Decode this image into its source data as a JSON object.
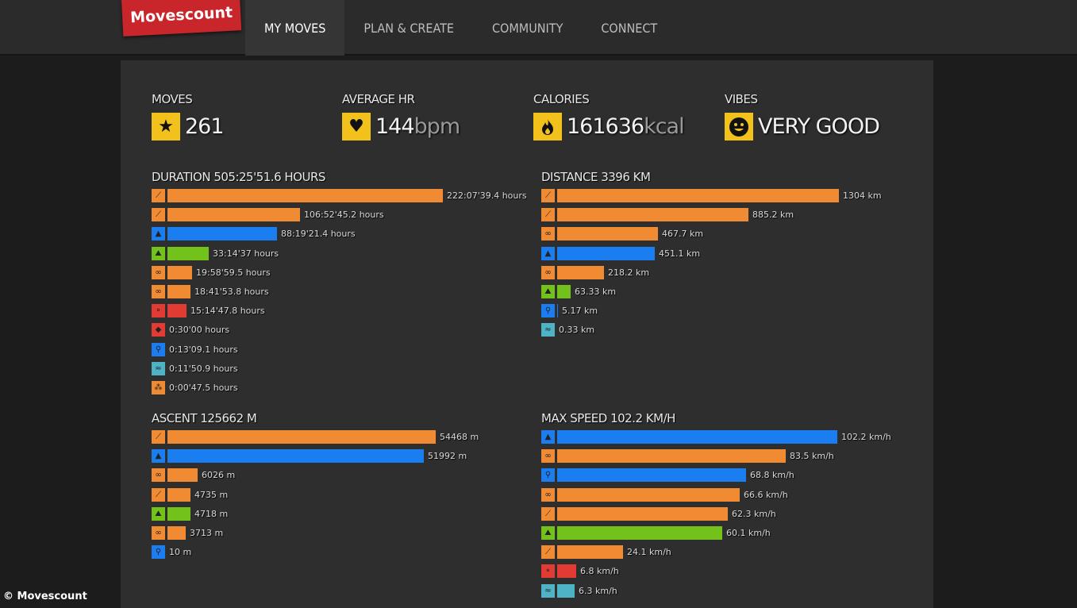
{
  "colors": {
    "orange": "#f08a33",
    "blue": "#1a7ef0",
    "green": "#72c21b",
    "red": "#e23b33",
    "teal": "#4fb3c6",
    "yellow": "#f3c11b"
  },
  "brand": {
    "name": "Movescount"
  },
  "nav": [
    {
      "label": "MY MOVES",
      "active": true
    },
    {
      "label": "PLAN & CREATE",
      "active": false
    },
    {
      "label": "COMMUNITY",
      "active": false
    },
    {
      "label": "CONNECT",
      "active": false
    }
  ],
  "summary": {
    "moves": {
      "label": "MOVES",
      "value": "261",
      "icon": "star-icon",
      "glyph": "★"
    },
    "hr": {
      "label": "AVERAGE HR",
      "value": "144",
      "unit": "bpm",
      "icon": "heart-icon",
      "glyph": "♥"
    },
    "calories": {
      "label": "CALORIES",
      "value": "161636",
      "unit": "kcal",
      "icon": "fire-icon",
      "glyph": "🔥"
    },
    "vibes": {
      "label": "VIBES",
      "value": "VERY GOOD",
      "icon": "smiley-icon",
      "glyph": "☻"
    }
  },
  "duration": {
    "title": "DURATION 505:25'51.6 HOURS",
    "rows": [
      {
        "icon": "skiing-icon",
        "color": "orange",
        "fraction": 1.0,
        "value": "222:07'39.4 hours"
      },
      {
        "icon": "skiing-icon",
        "color": "orange",
        "fraction": 0.481,
        "value": "106:52'45.2 hours"
      },
      {
        "icon": "mountaineering-icon",
        "color": "blue",
        "fraction": 0.398,
        "value": "88:19'21.4 hours"
      },
      {
        "icon": "trekking-icon",
        "color": "green",
        "fraction": 0.15,
        "value": "33:14'37 hours"
      },
      {
        "icon": "cycling-icon",
        "color": "orange",
        "fraction": 0.09,
        "value": "19:58'59.5 hours"
      },
      {
        "icon": "cycling-icon",
        "color": "orange",
        "fraction": 0.084,
        "value": "18:41'53.8 hours"
      },
      {
        "icon": "gym-icon",
        "color": "red",
        "fraction": 0.069,
        "value": "15:14'47.8 hours"
      },
      {
        "icon": "sport-icon",
        "color": "red",
        "fraction": 0.0,
        "value": "0:30'00 hours"
      },
      {
        "icon": "walking-icon",
        "color": "blue",
        "fraction": 0.0,
        "value": "0:13'09.1 hours"
      },
      {
        "icon": "swimming-icon",
        "color": "teal",
        "fraction": 0.0,
        "value": "0:11'50.9 hours"
      },
      {
        "icon": "multisport-icon",
        "color": "orange",
        "fraction": 0.0,
        "value": "0:00'47.5 hours"
      }
    ]
  },
  "distance": {
    "title": "DISTANCE 3396 KM",
    "rows": [
      {
        "icon": "skiing-icon",
        "color": "orange",
        "fraction": 1.0,
        "value": "1304 km"
      },
      {
        "icon": "skiing-icon",
        "color": "orange",
        "fraction": 0.679,
        "value": "885.2 km"
      },
      {
        "icon": "cycling-icon",
        "color": "orange",
        "fraction": 0.359,
        "value": "467.7 km"
      },
      {
        "icon": "mountaineering-icon",
        "color": "blue",
        "fraction": 0.346,
        "value": "451.1 km"
      },
      {
        "icon": "cycling-icon",
        "color": "orange",
        "fraction": 0.167,
        "value": "218.2 km"
      },
      {
        "icon": "trekking-icon",
        "color": "green",
        "fraction": 0.049,
        "value": "63.33 km"
      },
      {
        "icon": "walking-icon",
        "color": "blue",
        "fraction": 0.004,
        "value": "5.17 km"
      },
      {
        "icon": "swimming-icon",
        "color": "teal",
        "fraction": 0.0,
        "value": "0.33 km"
      }
    ]
  },
  "ascent": {
    "title": "ASCENT 125662 M",
    "rows": [
      {
        "icon": "skiing-icon",
        "color": "orange",
        "fraction": 1.0,
        "value": "54468 m"
      },
      {
        "icon": "mountaineering-icon",
        "color": "blue",
        "fraction": 0.955,
        "value": "51992 m"
      },
      {
        "icon": "cycling-icon",
        "color": "orange",
        "fraction": 0.111,
        "value": "6026 m"
      },
      {
        "icon": "skiing-icon",
        "color": "orange",
        "fraction": 0.087,
        "value": "4735 m"
      },
      {
        "icon": "trekking-icon",
        "color": "green",
        "fraction": 0.087,
        "value": "4718 m"
      },
      {
        "icon": "cycling-icon",
        "color": "orange",
        "fraction": 0.068,
        "value": "3713 m"
      },
      {
        "icon": "walking-icon",
        "color": "blue",
        "fraction": 0.0,
        "value": "10 m"
      }
    ]
  },
  "maxspeed": {
    "title": "MAX SPEED 102.2 KM/H",
    "rows": [
      {
        "icon": "mountaineering-icon",
        "color": "blue",
        "fraction": 1.0,
        "value": "102.2 km/h"
      },
      {
        "icon": "cycling-icon",
        "color": "orange",
        "fraction": 0.817,
        "value": "83.5 km/h"
      },
      {
        "icon": "walking-icon",
        "color": "blue",
        "fraction": 0.673,
        "value": "68.8 km/h"
      },
      {
        "icon": "cycling-icon",
        "color": "orange",
        "fraction": 0.652,
        "value": "66.6 km/h"
      },
      {
        "icon": "skiing-icon",
        "color": "orange",
        "fraction": 0.609,
        "value": "62.3 km/h"
      },
      {
        "icon": "trekking-icon",
        "color": "green",
        "fraction": 0.588,
        "value": "60.1 km/h"
      },
      {
        "icon": "skiing-icon",
        "color": "orange",
        "fraction": 0.236,
        "value": "24.1 km/h"
      },
      {
        "icon": "gym-icon",
        "color": "red",
        "fraction": 0.067,
        "value": "6.8 km/h"
      },
      {
        "icon": "swimming-icon",
        "color": "teal",
        "fraction": 0.062,
        "value": "6.3 km/h"
      }
    ]
  },
  "footer": {
    "text": "© Movescount"
  }
}
